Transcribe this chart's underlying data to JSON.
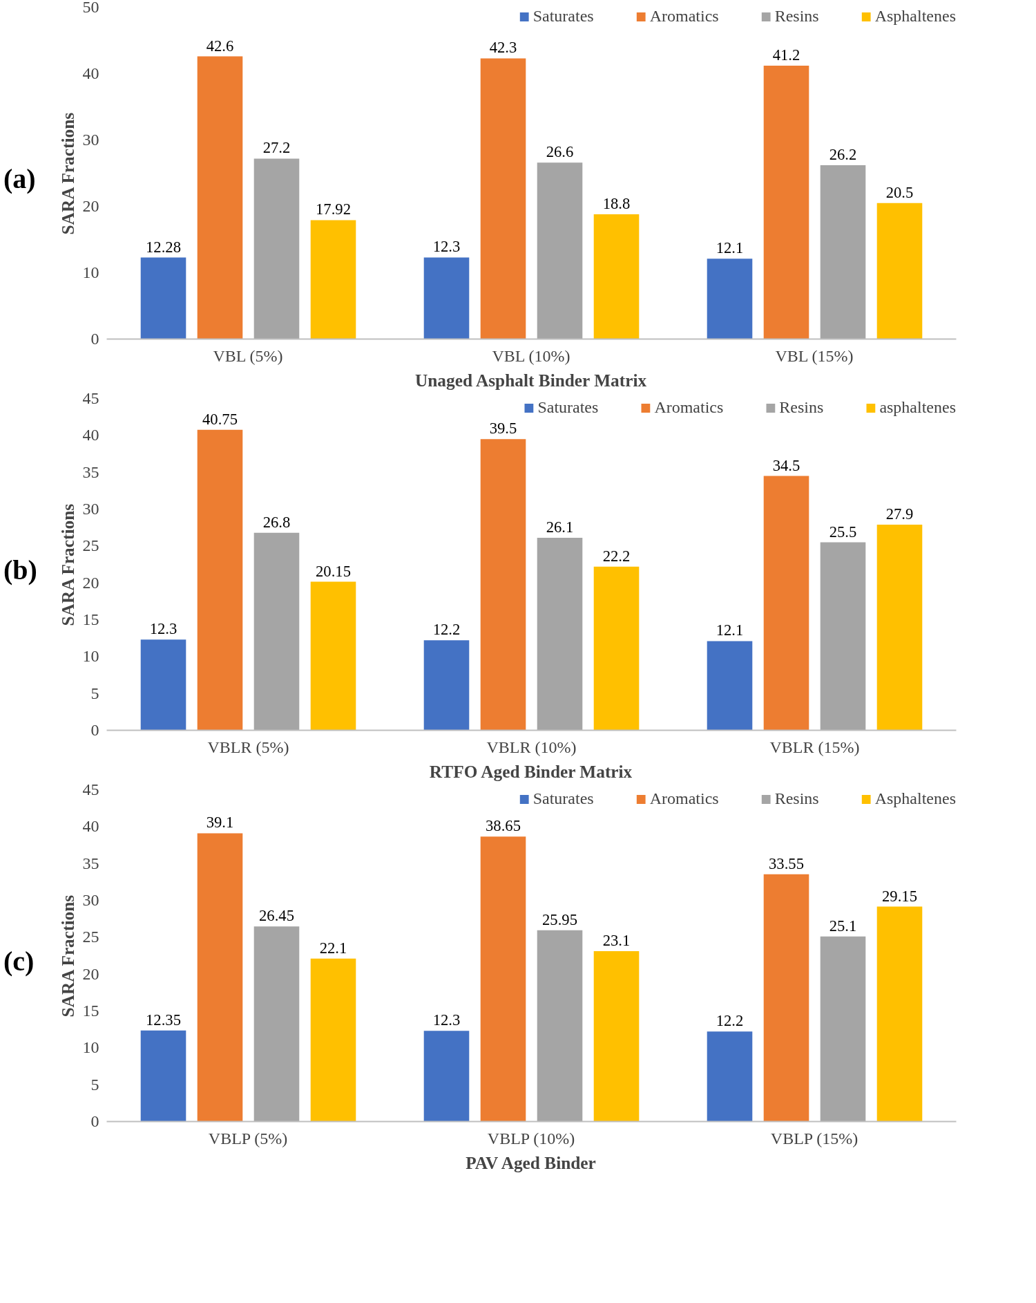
{
  "chart_data": [
    {
      "type": "bar",
      "categories": [
        "VBL (5%)",
        "VBL (10%)",
        "VBL (15%)"
      ],
      "xlabel": "Unaged Asphalt Binder Matrix",
      "ylabel": "SARA Fractions",
      "ylim": [
        0,
        50
      ],
      "yticks": [
        0,
        10,
        20,
        30,
        40,
        50
      ],
      "grid": false,
      "legend": "top",
      "data_labels": true,
      "annotations": [
        "(a)"
      ],
      "series": [
        {
          "name": "Saturates",
          "color": "#4472c4",
          "values": [
            12.28,
            12.3,
            12.1
          ]
        },
        {
          "name": "Aromatics",
          "color": "#ed7d31",
          "values": [
            42.6,
            42.3,
            41.2
          ]
        },
        {
          "name": "Resins",
          "color": "#a5a5a5",
          "values": [
            27.2,
            26.6,
            26.2
          ]
        },
        {
          "name": "Asphaltenes",
          "color": "#ffc000",
          "values": [
            17.92,
            18.8,
            20.5
          ]
        }
      ]
    },
    {
      "type": "bar",
      "categories": [
        "VBLR (5%)",
        "VBLR (10%)",
        "VBLR (15%)"
      ],
      "xlabel": "RTFO Aged Binder Matrix",
      "ylabel": "SARA Fractions",
      "ylim": [
        0,
        45
      ],
      "yticks": [
        0,
        5,
        10,
        15,
        20,
        25,
        30,
        35,
        40,
        45
      ],
      "grid": false,
      "legend": "top",
      "data_labels": true,
      "annotations": [
        "(b)"
      ],
      "series": [
        {
          "name": "Saturates",
          "color": "#4472c4",
          "values": [
            12.3,
            12.2,
            12.1
          ]
        },
        {
          "name": "Aromatics",
          "color": "#ed7d31",
          "values": [
            40.75,
            39.5,
            34.5
          ]
        },
        {
          "name": "Resins",
          "color": "#a5a5a5",
          "values": [
            26.8,
            26.1,
            25.5
          ]
        },
        {
          "name": "asphaltenes",
          "color": "#ffc000",
          "values": [
            20.15,
            22.2,
            27.9
          ]
        }
      ]
    },
    {
      "type": "bar",
      "categories": [
        "VBLP (5%)",
        "VBLP (10%)",
        "VBLP (15%)"
      ],
      "xlabel": "PAV Aged Binder",
      "ylabel": "SARA Fractions",
      "ylim": [
        0,
        45
      ],
      "yticks": [
        0,
        5,
        10,
        15,
        20,
        25,
        30,
        35,
        40,
        45
      ],
      "grid": false,
      "legend": "top",
      "data_labels": true,
      "annotations": [
        "(c)"
      ],
      "series": [
        {
          "name": "Saturates",
          "color": "#4472c4",
          "values": [
            12.35,
            12.3,
            12.2
          ]
        },
        {
          "name": "Aromatics",
          "color": "#ed7d31",
          "values": [
            39.1,
            38.65,
            33.55
          ]
        },
        {
          "name": "Resins",
          "color": "#a5a5a5",
          "values": [
            26.45,
            25.95,
            25.1
          ]
        },
        {
          "name": "Asphaltenes",
          "color": "#ffc000",
          "values": [
            22.1,
            23.1,
            29.15
          ]
        }
      ]
    }
  ]
}
